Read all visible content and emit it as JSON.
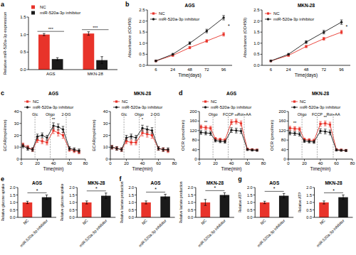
{
  "chart_data": [
    {
      "type": "bar",
      "panel_label": "a",
      "y_label": "Relative miR-520a-3p expression",
      "categories": [
        "AGS",
        "MKN-28"
      ],
      "series": [
        {
          "name": "NC",
          "color": "#e8332a",
          "values": [
            1.0,
            1.03
          ],
          "errors": [
            0.03,
            0.05
          ]
        },
        {
          "name": "miR-520a-3p inhibitor",
          "color": "#1a1a1a",
          "values": [
            0.3,
            0.27
          ],
          "errors": [
            0.04,
            0.1
          ]
        }
      ],
      "ylim": [
        0,
        1.5
      ],
      "yticks": [
        {
          "value": 0,
          "label": "0.0"
        },
        {
          "value": 0.5,
          "label": "0.5"
        },
        {
          "value": 1,
          "label": "1.0"
        },
        {
          "value": 1.5,
          "label": "1.5"
        }
      ],
      "legend": "top",
      "annotations": [
        {
          "text": "***",
          "category": 0
        },
        {
          "text": "***",
          "category": 1
        }
      ]
    },
    {
      "type": "line",
      "panel_label": "b",
      "title": "AGS",
      "x_label": "Time(days)",
      "y_label": "Absorbance (OD450)",
      "categories": [
        6,
        24,
        48,
        72,
        96
      ],
      "series": [
        {
          "name": "NC",
          "color": "#e8332a",
          "marker": "square",
          "values": [
            0.2,
            0.45,
            0.8,
            1.1,
            1.4
          ],
          "errors": [
            0.03,
            0.04,
            0.05,
            0.06,
            0.08
          ]
        },
        {
          "name": "miR-520a-3p inhibitor",
          "color": "#1a1a1a",
          "marker": "circle",
          "values": [
            0.2,
            0.5,
            1.0,
            1.55,
            2.15
          ],
          "errors": [
            0.03,
            0.04,
            0.06,
            0.08,
            0.1
          ]
        }
      ],
      "ylim": [
        0,
        2.5
      ],
      "yticks": [
        {
          "value": 0,
          "label": "0.0"
        },
        {
          "value": 0.5,
          "label": "0.5"
        },
        {
          "value": 1,
          "label": "1.0"
        },
        {
          "value": 1.5,
          "label": "1.5"
        },
        {
          "value": 2,
          "label": "2.0"
        },
        {
          "value": 2.5,
          "label": "2.5"
        }
      ],
      "legend": "upper left",
      "annotations": [
        {
          "text": "*",
          "category": 4
        }
      ]
    },
    {
      "type": "line",
      "title": "MKN-28",
      "x_label": "Time(days)",
      "y_label": "Absorbance (OD450)",
      "categories": [
        6,
        24,
        48,
        72,
        96
      ],
      "series": [
        {
          "name": "NC",
          "color": "#e8332a",
          "marker": "square",
          "values": [
            0.2,
            0.45,
            0.85,
            1.2,
            1.5
          ],
          "errors": [
            0.03,
            0.04,
            0.05,
            0.06,
            0.08
          ]
        },
        {
          "name": "miR-520a-3p inhibitor",
          "color": "#1a1a1a",
          "marker": "circle",
          "values": [
            0.2,
            0.5,
            1.05,
            1.5,
            1.95
          ],
          "errors": [
            0.03,
            0.04,
            0.06,
            0.08,
            0.1
          ]
        }
      ],
      "ylim": [
        0,
        2.5
      ],
      "yticks": [
        {
          "value": 0,
          "label": "0.0"
        },
        {
          "value": 0.5,
          "label": "0.5"
        },
        {
          "value": 1,
          "label": "1.0"
        },
        {
          "value": 1.5,
          "label": "1.5"
        },
        {
          "value": 2,
          "label": "2.0"
        },
        {
          "value": 2.5,
          "label": "2.5"
        }
      ],
      "legend": "upper left",
      "annotations": [
        {
          "text": "*",
          "category": 4
        }
      ]
    },
    {
      "type": "line",
      "panel_label": "c",
      "title": "AGS",
      "x_label": "Time(min)",
      "y_label": "ECAR(mpH/min)",
      "x": [
        2,
        8,
        14,
        20,
        26,
        32,
        40,
        46,
        52,
        60,
        66,
        72
      ],
      "xlim": [
        0,
        80
      ],
      "xticks": [
        0,
        20,
        40,
        60,
        80
      ],
      "ylim": [
        0,
        40
      ],
      "yticks": [
        0,
        10,
        20,
        30,
        40
      ],
      "legend": "top",
      "series": [
        {
          "name": "NC",
          "color": "#e8332a",
          "marker": "square",
          "values": [
            12,
            10,
            8,
            16,
            15,
            14,
            24,
            22,
            20,
            8,
            7,
            6
          ],
          "errors": [
            1.5,
            1.5,
            1.5,
            2,
            2,
            2,
            2.5,
            2.5,
            2.5,
            1.5,
            1.5,
            1.5
          ]
        },
        {
          "name": "miR-520a-3p inhibitor",
          "color": "#1a1a1a",
          "marker": "circle",
          "values": [
            11,
            9,
            8,
            19,
            20,
            18,
            28,
            27,
            25,
            9,
            8,
            7
          ],
          "errors": [
            1.5,
            1.5,
            1.5,
            2,
            2,
            2,
            2.5,
            2.5,
            2.5,
            1.5,
            1.5,
            1.5
          ]
        }
      ],
      "annotations": [
        {
          "text": "Glc",
          "x": 17
        },
        {
          "text": "Oligo",
          "x": 36
        },
        {
          "text": "2-DG",
          "x": 56
        },
        {
          "text": "**",
          "x": 40,
          "y": 32
        }
      ]
    },
    {
      "type": "line",
      "title": "MKN-28",
      "x_label": "Time(min)",
      "y_label": "ECAR(mpH/min)",
      "x": [
        2,
        8,
        14,
        20,
        26,
        32,
        40,
        46,
        52,
        60,
        66,
        72
      ],
      "xlim": [
        0,
        80
      ],
      "xticks": [
        0,
        20,
        40,
        60,
        80
      ],
      "ylim": [
        0,
        40
      ],
      "yticks": [
        0,
        10,
        20,
        30,
        40
      ],
      "legend": "top",
      "series": [
        {
          "name": "NC",
          "color": "#e8332a",
          "marker": "square",
          "values": [
            10,
            9,
            8,
            15,
            14,
            14,
            22,
            21,
            20,
            9,
            8,
            7
          ],
          "errors": [
            1.5,
            1.5,
            1.5,
            2,
            2,
            2,
            2.5,
            2.5,
            2.5,
            1.5,
            1.5,
            1.5
          ]
        },
        {
          "name": "miR-520a-3p inhibitor",
          "color": "#1a1a1a",
          "marker": "circle",
          "values": [
            10,
            9,
            8,
            18,
            19,
            18,
            26,
            25,
            24,
            9,
            8,
            8
          ],
          "errors": [
            1.5,
            1.5,
            1.5,
            2,
            2,
            2,
            2.5,
            2.5,
            2.5,
            1.5,
            1.5,
            1.5
          ]
        }
      ],
      "annotations": [
        {
          "text": "Glc",
          "x": 17
        },
        {
          "text": "Oligo",
          "x": 36
        },
        {
          "text": "2-DG",
          "x": 56
        },
        {
          "text": "*",
          "x": 40,
          "y": 32
        }
      ]
    },
    {
      "type": "line",
      "panel_label": "d",
      "title": "AGS",
      "x_label": "Time(min)",
      "y_label": "OCR (pmol/min)",
      "x": [
        2,
        8,
        14,
        20,
        26,
        32,
        40,
        46,
        52,
        60,
        66,
        72
      ],
      "xlim": [
        0,
        80
      ],
      "xticks": [
        0,
        20,
        40,
        60,
        80
      ],
      "ylim": [
        0,
        200
      ],
      "yticks": [
        0,
        40,
        80,
        120,
        160,
        200
      ],
      "legend": "top",
      "series": [
        {
          "name": "NC",
          "color": "#e8332a",
          "marker": "square",
          "values": [
            135,
            132,
            130,
            85,
            82,
            80,
            155,
            158,
            150,
            42,
            40,
            38
          ],
          "errors": [
            8,
            8,
            8,
            6,
            6,
            6,
            10,
            10,
            10,
            4,
            4,
            4
          ]
        },
        {
          "name": "miR-520a-3p inhibitor",
          "color": "#1a1a1a",
          "marker": "circle",
          "values": [
            112,
            110,
            108,
            78,
            75,
            73,
            122,
            120,
            118,
            40,
            38,
            37
          ],
          "errors": [
            8,
            8,
            8,
            6,
            6,
            6,
            10,
            10,
            10,
            4,
            4,
            4
          ]
        }
      ],
      "annotations": [
        {
          "text": "Oligo",
          "x": 17
        },
        {
          "text": "FCCP",
          "x": 36
        },
        {
          "text": "Rot+AA",
          "x": 56
        },
        {
          "text": "**",
          "x": 8,
          "y": 150
        },
        {
          "text": "**",
          "x": 46,
          "y": 175
        }
      ]
    },
    {
      "type": "line",
      "title": "MKN-28",
      "x_label": "Time(min)",
      "y_label": "OCR (pmol/min)",
      "x": [
        2,
        8,
        14,
        20,
        26,
        32,
        40,
        46,
        52,
        60,
        66,
        72
      ],
      "xlim": [
        0,
        80
      ],
      "xticks": [
        0,
        20,
        40,
        60,
        80
      ],
      "ylim": [
        0,
        200
      ],
      "yticks": [
        0,
        40,
        80,
        120,
        160,
        200
      ],
      "legend": "top",
      "series": [
        {
          "name": "NC",
          "color": "#e8332a",
          "marker": "square",
          "values": [
            130,
            128,
            126,
            82,
            80,
            78,
            148,
            150,
            145,
            40,
            38,
            37
          ],
          "errors": [
            8,
            8,
            8,
            6,
            6,
            6,
            10,
            10,
            10,
            4,
            4,
            4
          ]
        },
        {
          "name": "miR-520a-3p inhibitor",
          "color": "#1a1a1a",
          "marker": "circle",
          "values": [
            110,
            108,
            105,
            76,
            74,
            72,
            118,
            116,
            112,
            38,
            37,
            36
          ],
          "errors": [
            8,
            8,
            8,
            6,
            6,
            6,
            10,
            10,
            10,
            4,
            4,
            4
          ]
        }
      ],
      "annotations": [
        {
          "text": "Oligo",
          "x": 17
        },
        {
          "text": "FCCP",
          "x": 36
        },
        {
          "text": "Rot+AA",
          "x": 56
        },
        {
          "text": "**",
          "x": 8,
          "y": 145
        },
        {
          "text": "**",
          "x": 46,
          "y": 170
        }
      ]
    },
    {
      "type": "bar",
      "panel_label": "e",
      "title": "AGS",
      "y_label": "Relative glucose uptake",
      "categories": [
        "NC",
        "miR-520a-3p inhibitor"
      ],
      "values": [
        1.0,
        1.35
      ],
      "errors": [
        0.08,
        0.15
      ],
      "colors": [
        "#e8332a",
        "#1a1a1a"
      ],
      "ylim": [
        0,
        2
      ],
      "yticks": [
        {
          "value": 0,
          "label": "0.0"
        },
        {
          "value": 0.5,
          "label": "0.5"
        },
        {
          "value": 1,
          "label": "1.0"
        },
        {
          "value": 1.5,
          "label": "1.5"
        },
        {
          "value": 2,
          "label": "2.0"
        }
      ],
      "annotations": [
        {
          "text": "*"
        }
      ]
    },
    {
      "type": "bar",
      "title": "MKN-28",
      "y_label": "Relative glucose uptake",
      "categories": [
        "NC",
        "miR-520a-3p inhibitor"
      ],
      "values": [
        1.0,
        1.45
      ],
      "errors": [
        0.1,
        0.18
      ],
      "colors": [
        "#e8332a",
        "#1a1a1a"
      ],
      "ylim": [
        0,
        2
      ],
      "yticks": [
        {
          "value": 0,
          "label": "0.0"
        },
        {
          "value": 0.5,
          "label": "0.5"
        },
        {
          "value": 1,
          "label": "1.0"
        },
        {
          "value": 1.5,
          "label": "1.5"
        },
        {
          "value": 2,
          "label": "2.0"
        }
      ],
      "annotations": [
        {
          "text": "*"
        }
      ]
    },
    {
      "type": "bar",
      "panel_label": "f",
      "title": "AGS",
      "y_label": "Relative lactate production",
      "categories": [
        "NC",
        "miR-520a-3p inhibitor"
      ],
      "values": [
        1.0,
        1.4
      ],
      "errors": [
        0.1,
        0.15
      ],
      "colors": [
        "#e8332a",
        "#1a1a1a"
      ],
      "ylim": [
        0,
        2
      ],
      "yticks": [
        {
          "value": 0,
          "label": "0.0"
        },
        {
          "value": 0.5,
          "label": "0.5"
        },
        {
          "value": 1,
          "label": "1.0"
        },
        {
          "value": 1.5,
          "label": "1.5"
        },
        {
          "value": 2,
          "label": "2.0"
        }
      ],
      "annotations": [
        {
          "text": "*"
        }
      ]
    },
    {
      "type": "bar",
      "title": "MKN-28",
      "y_label": "Relative lactate production",
      "categories": [
        "NC",
        "miR-520a-3p inhibitor"
      ],
      "values": [
        1.0,
        1.5
      ],
      "errors": [
        0.2,
        0.15
      ],
      "colors": [
        "#e8332a",
        "#1a1a1a"
      ],
      "ylim": [
        0,
        2
      ],
      "yticks": [
        {
          "value": 0,
          "label": "0.0"
        },
        {
          "value": 0.5,
          "label": "0.5"
        },
        {
          "value": 1,
          "label": "1.0"
        },
        {
          "value": 1.5,
          "label": "1.5"
        },
        {
          "value": 2,
          "label": "2.0"
        }
      ],
      "annotations": [
        {
          "text": "*"
        }
      ]
    },
    {
      "type": "bar",
      "panel_label": "g",
      "title": "AGS",
      "y_label": "Relative ATP",
      "categories": [
        "NC",
        "miR-520a-3p inhibitor"
      ],
      "values": [
        1.0,
        1.45
      ],
      "errors": [
        0.08,
        0.15
      ],
      "colors": [
        "#e8332a",
        "#1a1a1a"
      ],
      "ylim": [
        0,
        2
      ],
      "yticks": [
        {
          "value": 0,
          "label": "0.0"
        },
        {
          "value": 0.5,
          "label": "0.5"
        },
        {
          "value": 1,
          "label": "1.0"
        },
        {
          "value": 1.5,
          "label": "1.5"
        },
        {
          "value": 2,
          "label": "2.0"
        }
      ],
      "annotations": [
        {
          "text": "*"
        }
      ]
    },
    {
      "type": "bar",
      "title": "MKN-28",
      "y_label": "Relative ATP",
      "categories": [
        "NC",
        "miR-520a-3p inhibitor"
      ],
      "values": [
        1.0,
        1.35
      ],
      "errors": [
        0.1,
        0.15
      ],
      "colors": [
        "#e8332a",
        "#1a1a1a"
      ],
      "ylim": [
        0,
        2
      ],
      "yticks": [
        {
          "value": 0,
          "label": "0.0"
        },
        {
          "value": 0.5,
          "label": "0.5"
        },
        {
          "value": 1,
          "label": "1.0"
        },
        {
          "value": 1.5,
          "label": "1.5"
        },
        {
          "value": 2,
          "label": "2.0"
        }
      ],
      "annotations": [
        {
          "text": "*"
        }
      ]
    }
  ]
}
